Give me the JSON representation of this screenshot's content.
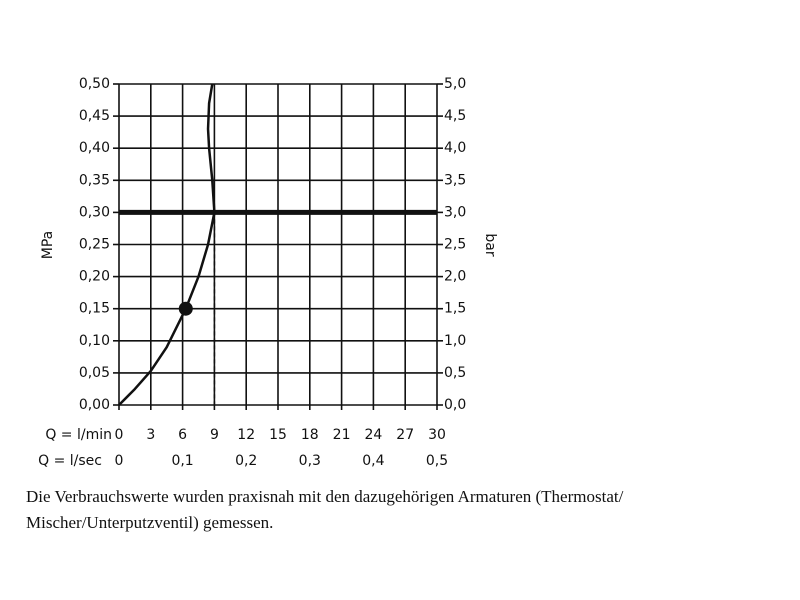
{
  "chart_data": {
    "type": "line",
    "x": [
      0,
      1.5,
      3,
      4.5,
      6.3,
      7.5,
      8.4,
      9,
      8.8,
      8.5,
      8.4,
      8.5,
      8.8
    ],
    "series": [
      {
        "color": "#111111",
        "values": [
          0,
          0.025,
          0.053,
          0.09,
          0.15,
          0.2,
          0.25,
          0.3,
          0.35,
          0.4,
          0.43,
          0.47,
          0.5
        ]
      }
    ],
    "marker": {
      "x": 6.3,
      "y": 0.15
    },
    "hline": 0.3,
    "vline": 9,
    "xlabel": "Q = l/min",
    "xlim": [
      0,
      30
    ],
    "xticks": [
      0,
      3,
      6,
      9,
      12,
      15,
      18,
      21,
      24,
      27,
      30
    ],
    "x2label": "Q = l/sec",
    "x2lim": [
      0,
      0.5
    ],
    "x2ticks": [
      0,
      {
        "value": 0.1,
        "label": "0,1"
      },
      {
        "value": 0.2,
        "label": "0,2"
      },
      {
        "value": 0.3,
        "label": "0,3"
      },
      {
        "value": 0.4,
        "label": "0,4"
      },
      {
        "value": 0.5,
        "label": "0,5"
      }
    ],
    "ylabel": "MPa",
    "ylim": [
      0,
      0.5
    ],
    "yticks": [
      {
        "value": 0,
        "label": "0,00"
      },
      {
        "value": 0.05,
        "label": "0,05"
      },
      {
        "value": 0.1,
        "label": "0,10"
      },
      {
        "value": 0.15,
        "label": "0,15"
      },
      {
        "value": 0.2,
        "label": "0,20"
      },
      {
        "value": 0.25,
        "label": "0,25"
      },
      {
        "value": 0.3,
        "label": "0,30"
      },
      {
        "value": 0.35,
        "label": "0,35"
      },
      {
        "value": 0.4,
        "label": "0,40"
      },
      {
        "value": 0.45,
        "label": "0,45"
      },
      {
        "value": 0.5,
        "label": "0,50"
      }
    ],
    "y2label": "bar",
    "y2lim": [
      0,
      5
    ],
    "y2ticks": [
      {
        "value": 0,
        "label": "0,0"
      },
      {
        "value": 0.5,
        "label": "0,5"
      },
      {
        "value": 1,
        "label": "1,0"
      },
      {
        "value": 1.5,
        "label": "1,5"
      },
      {
        "value": 2,
        "label": "2,0"
      },
      {
        "value": 2.5,
        "label": "2,5"
      },
      {
        "value": 3,
        "label": "3,0"
      },
      {
        "value": 3.5,
        "label": "3,5"
      },
      {
        "value": 4,
        "label": "4,0"
      },
      {
        "value": 4.5,
        "label": "4,5"
      },
      {
        "value": 5,
        "label": "5,0"
      }
    ],
    "grid": true,
    "caption": [
      "Die Verbrauchswerte wurden praxisnah mit den dazugehörigen Armaturen (Thermostat/",
      "Mischer/Unterputzventil) gemessen."
    ]
  }
}
